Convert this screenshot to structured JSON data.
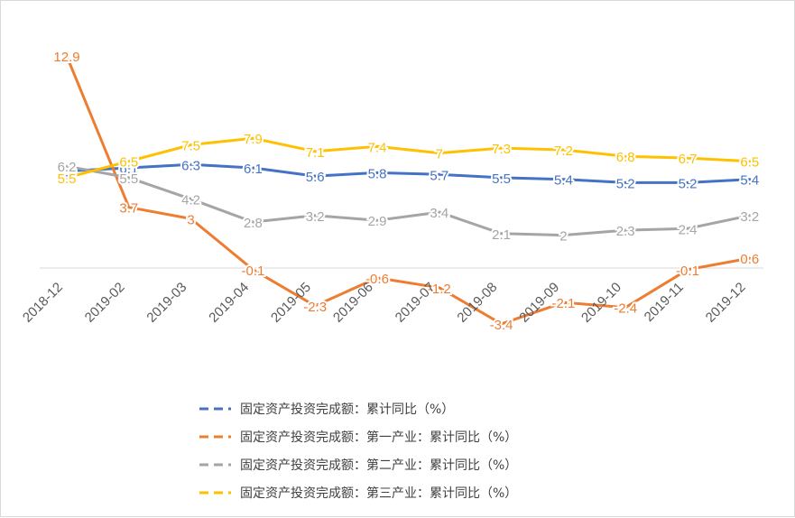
{
  "chart_data": {
    "type": "line",
    "categories": [
      "2018-12",
      "2019-02",
      "2019-03",
      "2019-04",
      "2019-05",
      "2019-06",
      "2019-07",
      "2019-08",
      "2019-09",
      "2019-10",
      "2019-11",
      "2019-12"
    ],
    "series": [
      {
        "name": "固定资产投资完成额：累计同比（%）",
        "color": "#4472C4",
        "values": [
          5.9,
          6.1,
          6.3,
          6.1,
          5.6,
          5.8,
          5.7,
          5.5,
          5.4,
          5.2,
          5.2,
          5.4
        ]
      },
      {
        "name": "固定资产投资完成额：第一产业：累计同比（%）",
        "color": "#ED7D31",
        "values": [
          12.9,
          3.7,
          3,
          -0.1,
          -2.3,
          -0.6,
          -1.2,
          -3.4,
          -2.1,
          -2.4,
          -0.1,
          0.6
        ]
      },
      {
        "name": "固定资产投资完成额：第二产业：累计同比（%）",
        "color": "#A5A5A5",
        "values": [
          6.2,
          5.5,
          4.2,
          2.8,
          3.2,
          2.9,
          3.4,
          2.1,
          2,
          2.3,
          2.4,
          3.2
        ]
      },
      {
        "name": "固定资产投资完成额：第三产业：累计同比（%）",
        "color": "#FFC000",
        "values": [
          5.5,
          6.5,
          7.5,
          7.9,
          7.1,
          7.4,
          7,
          7.3,
          7.2,
          6.8,
          6.7,
          6.5
        ]
      }
    ],
    "labels": [
      [
        "5.9",
        "6.1",
        "6.3",
        "6.1",
        "5.6",
        "5.8",
        "5.7",
        "5.5",
        "5.4",
        "5.2",
        "5.2",
        "5.4"
      ],
      [
        "12.9",
        "3.7",
        "3",
        "-0.1",
        "-2.3",
        "-0.6",
        "-1.2",
        "-3.4",
        "-2.1",
        "-2.4",
        "-0.1",
        "0.6"
      ],
      [
        "6.2",
        "5.5",
        "4.2",
        "2.8",
        "3.2",
        "2.9",
        "3.4",
        "2.1",
        "2",
        "2.3",
        "2.4",
        "3.2"
      ],
      [
        "5.5",
        "6.5",
        "7.5",
        "7.9",
        "7.1",
        "7.4",
        "7",
        "7.3",
        "7.2",
        "6.8",
        "6.7",
        "6.5"
      ]
    ],
    "ylim": [
      -5,
      15
    ],
    "grid": false,
    "legend_position": "bottom"
  }
}
